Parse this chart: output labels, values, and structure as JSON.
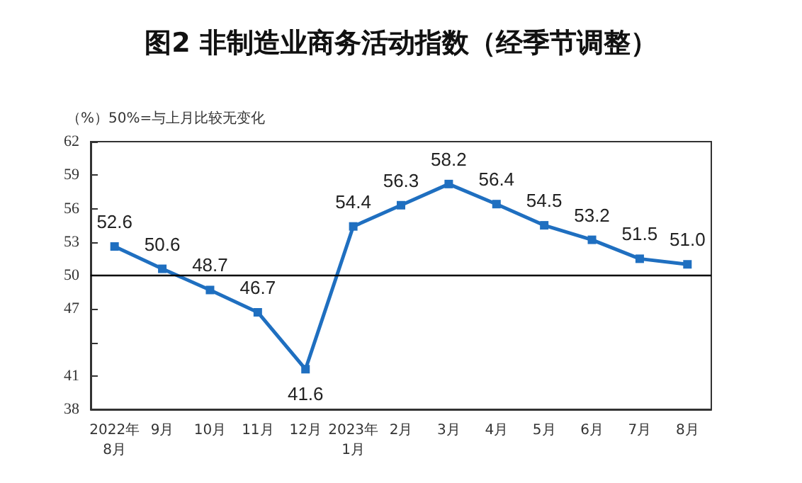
{
  "chart_data": {
    "type": "line",
    "title": "图2 非制造业商务活动指数（经季节调整）",
    "ylabel": "（%）50%=与上月比较无变化",
    "categories": [
      "2022年\n8月",
      "9月",
      "10月",
      "11月",
      "12月",
      "2023年\n1月",
      "2月",
      "3月",
      "4月",
      "5月",
      "6月",
      "7月",
      "8月"
    ],
    "series": [
      {
        "color": "#1f6fc0",
        "values": [
          52.6,
          50.6,
          48.7,
          46.7,
          41.6,
          54.4,
          56.3,
          58.2,
          56.4,
          54.5,
          53.2,
          51.5,
          51.0
        ],
        "value_labels": [
          "52.6",
          "50.6",
          "48.7",
          "46.7",
          "41.6",
          "54.4",
          "56.3",
          "58.2",
          "56.4",
          "54.5",
          "53.2",
          "51.5",
          "51.0"
        ]
      }
    ],
    "ylim": [
      38,
      62
    ],
    "yticks": [
      38,
      41,
      {
        "value": 44,
        "label": null
      },
      47,
      50,
      53,
      56,
      59,
      62
    ],
    "ref_lines": [
      {
        "axis": "y",
        "value": 50,
        "color": "#000000"
      }
    ],
    "marker": "square",
    "grid": false
  }
}
